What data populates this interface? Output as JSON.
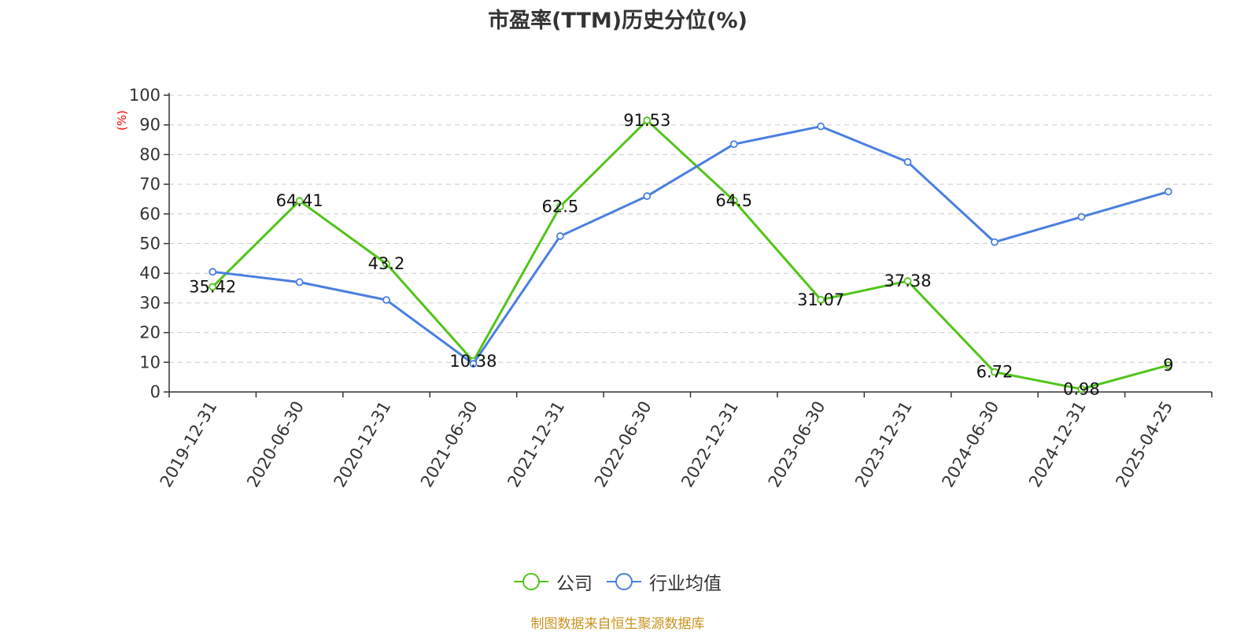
{
  "title": "市盈率(TTM)历史分位(%)",
  "source": "制图数据来自恒生聚源数据库",
  "colors": {
    "company": "#52c41a",
    "industry": "#4a7fe0",
    "axis": "#333333",
    "grid": "#cccccc",
    "ylabel": "#ff0000",
    "source": "#c8941e"
  },
  "chart_data": {
    "type": "line",
    "title": "市盈率(TTM)历史分位(%)",
    "ylabel": "(%)",
    "xlabel": "",
    "ylim": [
      0,
      100
    ],
    "yticks": [
      0,
      10,
      20,
      30,
      40,
      50,
      60,
      70,
      80,
      90,
      100
    ],
    "grid": true,
    "legend_position": "bottom",
    "categories": [
      "2019-12-31",
      "2020-06-30",
      "2020-12-31",
      "2021-06-30",
      "2021-12-31",
      "2022-06-30",
      "2022-12-31",
      "2023-06-30",
      "2023-12-31",
      "2024-06-30",
      "2024-12-31",
      "2025-04-25"
    ],
    "series": [
      {
        "name": "公司",
        "color": "#52c41a",
        "labels_shown": true,
        "values": [
          35.42,
          64.41,
          43.2,
          10.38,
          62.5,
          91.53,
          64.5,
          31.07,
          37.38,
          6.72,
          0.98,
          9
        ]
      },
      {
        "name": "行业均值",
        "color": "#4a7fe0",
        "labels_shown": false,
        "values": [
          40.5,
          37,
          31,
          9.5,
          52.5,
          66,
          83.5,
          89.5,
          77.5,
          50.5,
          59,
          67.5
        ]
      }
    ]
  }
}
